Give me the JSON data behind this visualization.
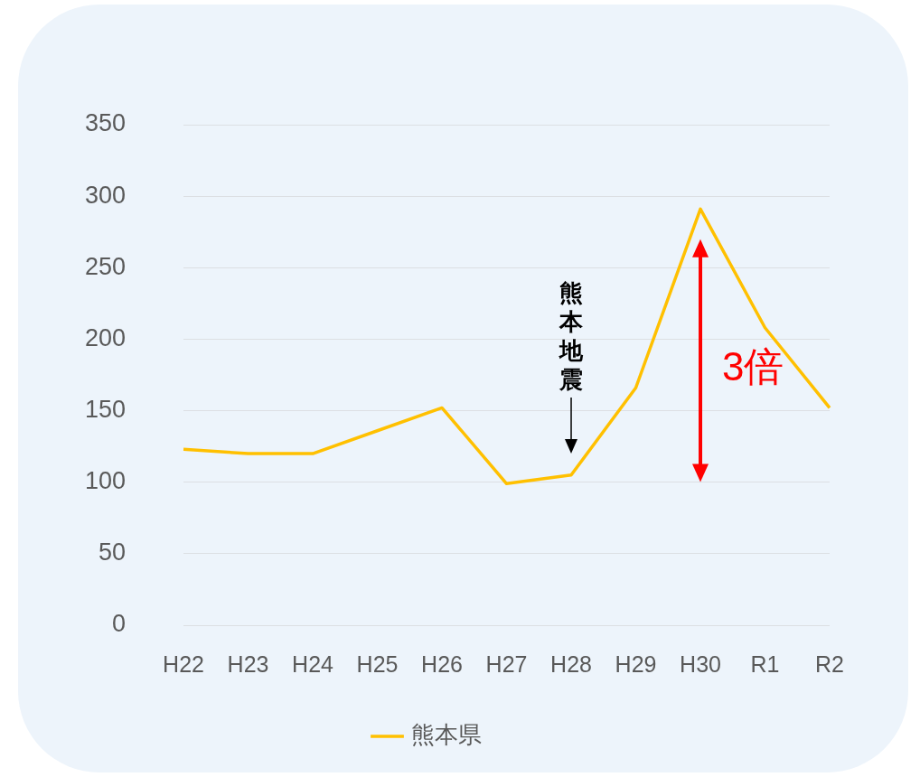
{
  "chart_data": {
    "type": "line",
    "categories": [
      "H22",
      "H23",
      "H24",
      "H25",
      "H26",
      "H27",
      "H28",
      "H29",
      "H30",
      "R1",
      "R2"
    ],
    "series": [
      {
        "name": "熊本県",
        "color": "#ffc000",
        "values": [
          123,
          120,
          120,
          136,
          152,
          99,
          105,
          166,
          291,
          208,
          152
        ]
      }
    ],
    "ylim": [
      0,
      350
    ],
    "yticks": [
      0,
      50,
      100,
      150,
      200,
      250,
      300,
      350
    ],
    "grid": "y",
    "legend": "bottom",
    "marker": "none",
    "line_style": "solid",
    "annotations": [
      "熊本地震",
      "3倍"
    ]
  }
}
